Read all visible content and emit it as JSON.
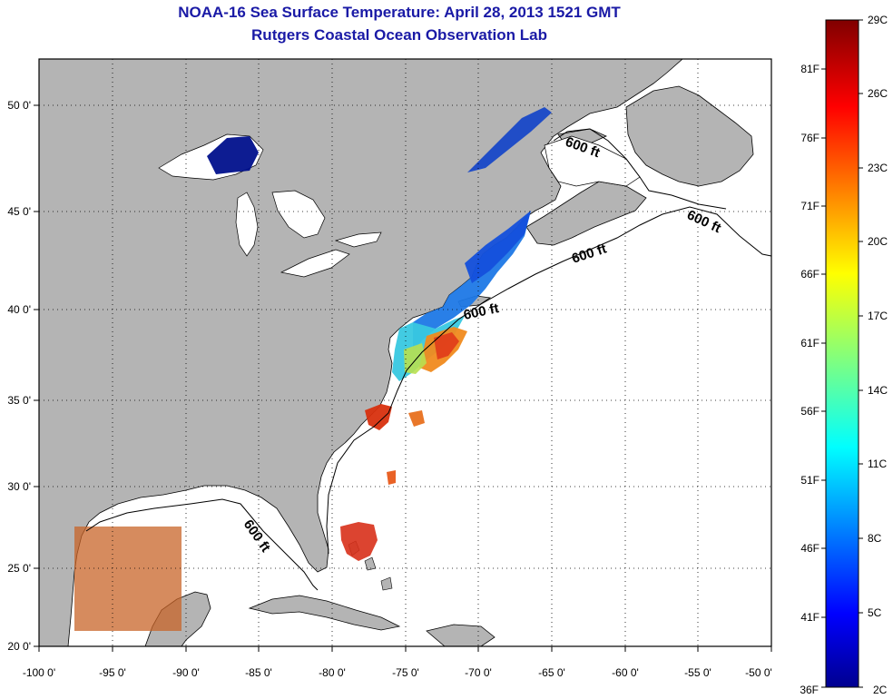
{
  "header": {
    "title": "NOAA-16 Sea Surface Temperature:  April 28, 2013 1521 GMT",
    "subtitle": "Rutgers Coastal Ocean Observation Lab"
  },
  "map": {
    "lon_range": [
      -100,
      -50
    ],
    "lat_range": [
      20,
      52.5
    ],
    "lon_ticks": [
      "-100 0'",
      "-95 0'",
      "-90 0'",
      "-85 0'",
      "-80 0'",
      "-75 0'",
      "-70 0'",
      "-65 0'",
      "-60 0'",
      "-55 0'",
      "-50 0'"
    ],
    "lat_ticks": [
      "20 0'",
      "25 0'",
      "30 0'",
      "35 0'",
      "40 0'",
      "45 0'",
      "50 0'"
    ],
    "contour_labels": [
      "600 ft",
      "600 ft",
      "600 ft",
      "600 ft",
      "600 ft"
    ],
    "colors": {
      "land": "#b4b4b4",
      "ocean": "#ffffff",
      "title": "#1a1aa6"
    }
  },
  "colorbar": {
    "celsius_labels": [
      "29C",
      "26C",
      "23C",
      "20C",
      "17C",
      "14C",
      "11C",
      "8C",
      "5C",
      "2C"
    ],
    "fahrenheit_labels": [
      "81F",
      "76F",
      "71F",
      "66F",
      "61F",
      "56F",
      "51F",
      "46F",
      "41F",
      "36F"
    ],
    "colormap": "jet"
  }
}
